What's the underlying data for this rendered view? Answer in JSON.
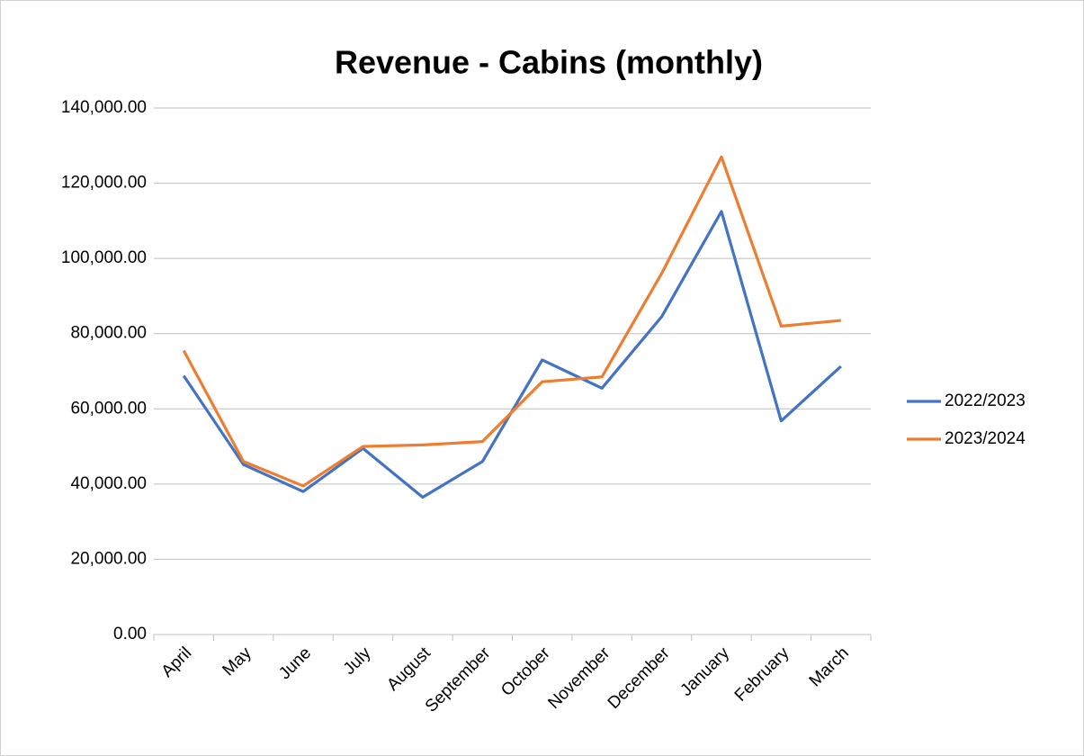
{
  "chart_data": {
    "type": "line",
    "title": "Revenue - Cabins (monthly)",
    "categories": [
      "April",
      "May",
      "June",
      "July",
      "August",
      "September",
      "October",
      "November",
      "December",
      "January",
      "February",
      "March"
    ],
    "series": [
      {
        "name": "2022/2023",
        "color": "#4472c4",
        "values": [
          68800,
          45200,
          38000,
          49500,
          36500,
          46000,
          73000,
          65500,
          84500,
          112500,
          56800,
          71300
        ]
      },
      {
        "name": "2023/2024",
        "color": "#ed7d31",
        "values": [
          75500,
          46000,
          39500,
          50000,
          50400,
          51300,
          67200,
          68500,
          96000,
          127000,
          82000,
          83500
        ]
      }
    ],
    "ylim": [
      0,
      140000
    ],
    "yticks": [
      {
        "value": 0,
        "label": "0.00"
      },
      {
        "value": 20000,
        "label": "20,000.00"
      },
      {
        "value": 40000,
        "label": "40,000.00"
      },
      {
        "value": 60000,
        "label": "60,000.00"
      },
      {
        "value": 80000,
        "label": "80,000.00"
      },
      {
        "value": 100000,
        "label": "100,000.00"
      },
      {
        "value": 120000,
        "label": "120,000.00"
      },
      {
        "value": 140000,
        "label": "140,000.00"
      }
    ],
    "grid": true,
    "legend": "right"
  }
}
